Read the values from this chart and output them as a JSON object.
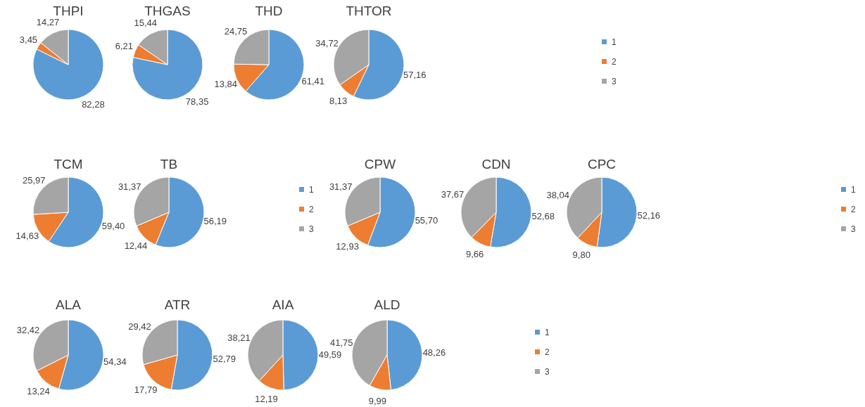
{
  "chart_data": [
    {
      "type": "pie",
      "title": "THPI",
      "categories": [
        null,
        null,
        null
      ],
      "values": [
        82.28,
        3.45,
        14.27
      ],
      "value_labels": [
        "82,28",
        "3,45",
        "14,27"
      ],
      "colors": [
        "#5b9bd5",
        "#ed7d31",
        "#a5a5a5"
      ],
      "legend": false
    },
    {
      "type": "pie",
      "title": "THGAS",
      "categories": [
        null,
        null,
        null
      ],
      "values": [
        78.35,
        6.21,
        15.44
      ],
      "value_labels": [
        "78,35",
        "6,21",
        "15,44"
      ],
      "colors": [
        "#5b9bd5",
        "#ed7d31",
        "#a5a5a5"
      ],
      "legend": false
    },
    {
      "type": "pie",
      "title": "THD",
      "categories": [
        null,
        null,
        null
      ],
      "values": [
        61.41,
        13.84,
        24.75
      ],
      "value_labels": [
        "61,41",
        "13,84",
        "24,75"
      ],
      "colors": [
        "#5b9bd5",
        "#ed7d31",
        "#a5a5a5"
      ],
      "legend": false
    },
    {
      "type": "pie",
      "title": "THTOR",
      "categories": [
        "1",
        "2",
        "3"
      ],
      "values": [
        57.16,
        8.13,
        34.72
      ],
      "value_labels": [
        "57,16",
        "8,13",
        "34,72"
      ],
      "colors": [
        "#5b9bd5",
        "#ed7d31",
        "#a5a5a5"
      ],
      "legend": "right"
    },
    {
      "type": "pie",
      "title": "TCM",
      "categories": [
        null,
        null,
        null
      ],
      "values": [
        59.4,
        14.63,
        25.97
      ],
      "value_labels": [
        "59,40",
        "14,63",
        "25,97"
      ],
      "colors": [
        "#5b9bd5",
        "#ed7d31",
        "#a5a5a5"
      ],
      "legend": false
    },
    {
      "type": "pie",
      "title": "TB",
      "categories": [
        "1",
        "2",
        "3"
      ],
      "values": [
        56.19,
        12.44,
        31.37
      ],
      "value_labels": [
        "56,19",
        "12,44",
        "31,37"
      ],
      "colors": [
        "#5b9bd5",
        "#ed7d31",
        "#a5a5a5"
      ],
      "legend": "right"
    },
    {
      "type": "pie",
      "title": "CPW",
      "categories": [
        null,
        null,
        null
      ],
      "values": [
        55.7,
        12.93,
        31.37
      ],
      "value_labels": [
        "55,70",
        "12,93",
        "31,37"
      ],
      "colors": [
        "#5b9bd5",
        "#ed7d31",
        "#a5a5a5"
      ],
      "legend": false
    },
    {
      "type": "pie",
      "title": "CDN",
      "categories": [
        null,
        null,
        null
      ],
      "values": [
        52.68,
        9.66,
        37.67
      ],
      "value_labels": [
        "52,68",
        "9,66",
        "37,67"
      ],
      "colors": [
        "#5b9bd5",
        "#ed7d31",
        "#a5a5a5"
      ],
      "legend": false
    },
    {
      "type": "pie",
      "title": "CPC",
      "categories": [
        "1",
        "2",
        "3"
      ],
      "values": [
        52.16,
        9.8,
        38.04
      ],
      "value_labels": [
        "52,16",
        "9,80",
        "38,04"
      ],
      "colors": [
        "#5b9bd5",
        "#ed7d31",
        "#a5a5a5"
      ],
      "legend": "right"
    },
    {
      "type": "pie",
      "title": "ALA",
      "categories": [
        null,
        null,
        null
      ],
      "values": [
        54.34,
        13.24,
        32.42
      ],
      "value_labels": [
        "54,34",
        "13,24",
        "32,42"
      ],
      "colors": [
        "#5b9bd5",
        "#ed7d31",
        "#a5a5a5"
      ],
      "legend": false
    },
    {
      "type": "pie",
      "title": "ATR",
      "categories": [
        null,
        null,
        null
      ],
      "values": [
        52.79,
        17.79,
        29.42
      ],
      "value_labels": [
        "52,79",
        "17,79",
        "29,42"
      ],
      "colors": [
        "#5b9bd5",
        "#ed7d31",
        "#a5a5a5"
      ],
      "legend": false
    },
    {
      "type": "pie",
      "title": "AIA",
      "categories": [
        null,
        null,
        null
      ],
      "values": [
        49.59,
        12.19,
        38.21
      ],
      "value_labels": [
        "49,59",
        "12,19",
        "38,21"
      ],
      "colors": [
        "#5b9bd5",
        "#ed7d31",
        "#a5a5a5"
      ],
      "legend": false
    },
    {
      "type": "pie",
      "title": "ALD",
      "categories": [
        "1",
        "2",
        "3"
      ],
      "values": [
        48.26,
        9.99,
        41.75
      ],
      "value_labels": [
        "48,26",
        "9,99",
        "41,75"
      ],
      "colors": [
        "#5b9bd5",
        "#ed7d31",
        "#a5a5a5"
      ],
      "legend": "right"
    }
  ]
}
